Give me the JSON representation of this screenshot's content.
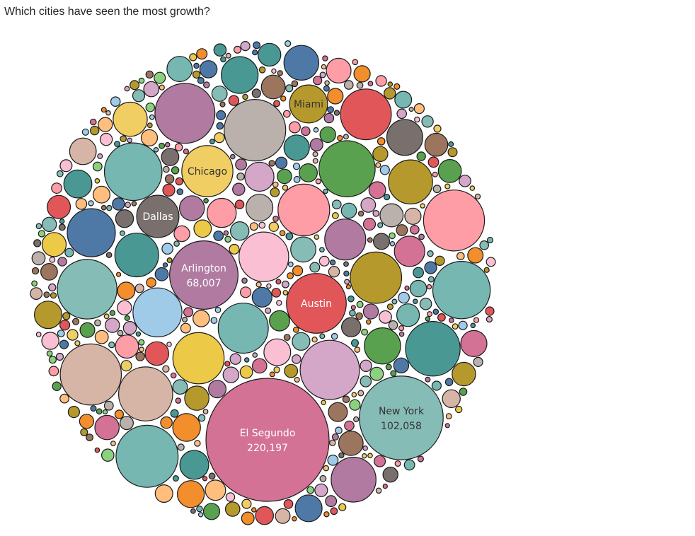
{
  "chart_data": {
    "type": "bubble",
    "title": "Which cities have seen the most growth?",
    "palette": [
      "#4e79a7",
      "#f28e2b",
      "#e15759",
      "#76b7b2",
      "#59a14f",
      "#edc948",
      "#b07aa1",
      "#ff9da7",
      "#9c755f",
      "#bab0ac",
      "#8cd17d",
      "#a0cbe8",
      "#ffbe7d",
      "#499894",
      "#d37295",
      "#b6992d",
      "#fabfd2",
      "#d4a6c8",
      "#79706e",
      "#d7b5a6",
      "#86bcb6",
      "#f1ce63"
    ],
    "cities": [
      {
        "name": "El Segundo",
        "value": 220197,
        "value_label": "220,197",
        "color": "#d37295",
        "text_color": "#ffffff"
      },
      {
        "name": "New York",
        "value": 102058,
        "value_label": "102,058",
        "color": "#86bcb6",
        "text_color": "#333333"
      },
      {
        "name": "Arlington",
        "value": 68007,
        "value_label": "68,007",
        "color": "#b07aa1",
        "text_color": "#ffffff"
      },
      {
        "name": "Austin",
        "value": 52000,
        "value_label": "",
        "color": "#e15759",
        "text_color": "#ffffff"
      },
      {
        "name": "Chicago",
        "value": 38000,
        "value_label": "",
        "color": "#f1ce63",
        "text_color": "#333333"
      },
      {
        "name": "Dallas",
        "value": 26000,
        "value_label": "",
        "color": "#79706e",
        "text_color": "#ffffff"
      },
      {
        "name": "Miami",
        "value": 21000,
        "value_label": "",
        "color": "#b6992d",
        "text_color": "#333333"
      }
    ]
  }
}
